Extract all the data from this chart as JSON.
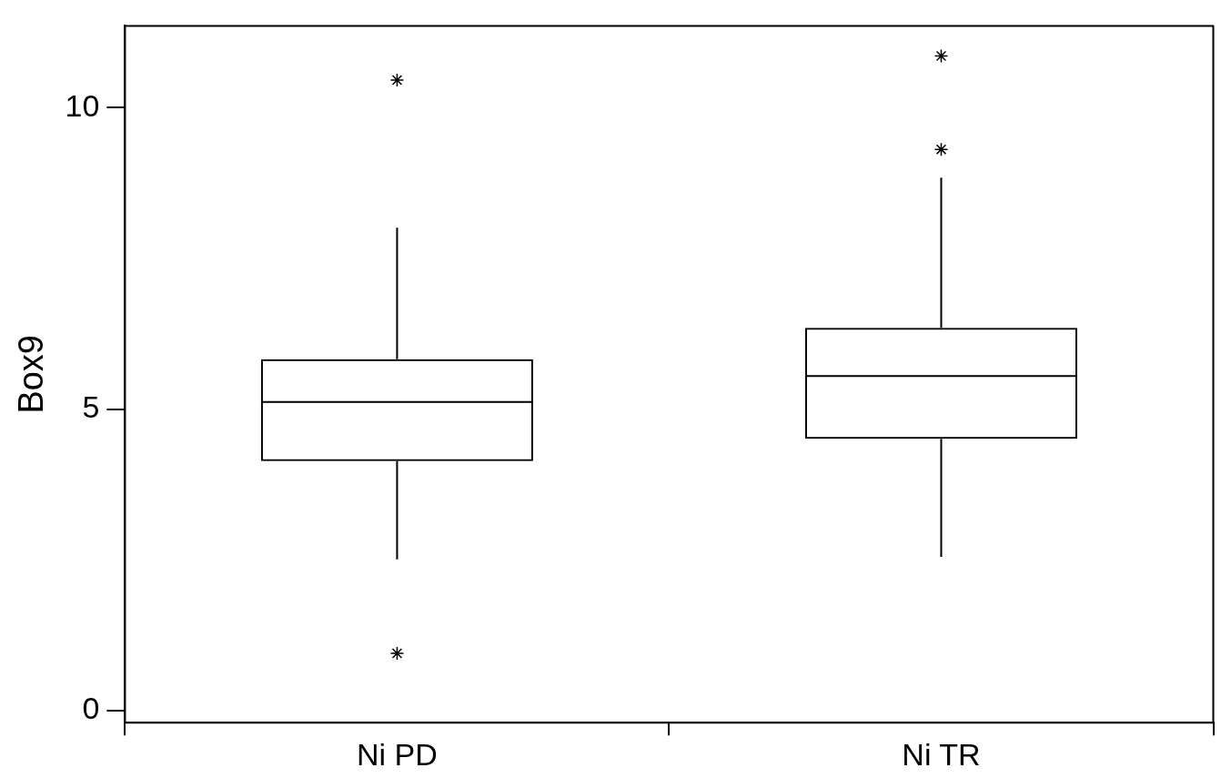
{
  "chart_data": {
    "type": "box",
    "ylabel": "Box9",
    "categories": [
      "Ni PD",
      "Ni TR"
    ],
    "boxes": [
      {
        "low": 2.51,
        "q1": 4.14,
        "median": 5.12,
        "q3": 5.83,
        "high": 8.01,
        "outliers": [
          10.46,
          0.95
        ]
      },
      {
        "low": 2.55,
        "q1": 4.51,
        "median": 5.55,
        "q3": 6.35,
        "high": 8.84,
        "outliers": [
          10.86,
          9.31
        ]
      }
    ],
    "ylim": [
      -0.2,
      11.36
    ],
    "yticks": [
      0,
      5,
      10
    ],
    "grid": false,
    "legend": false,
    "marker": "star"
  }
}
